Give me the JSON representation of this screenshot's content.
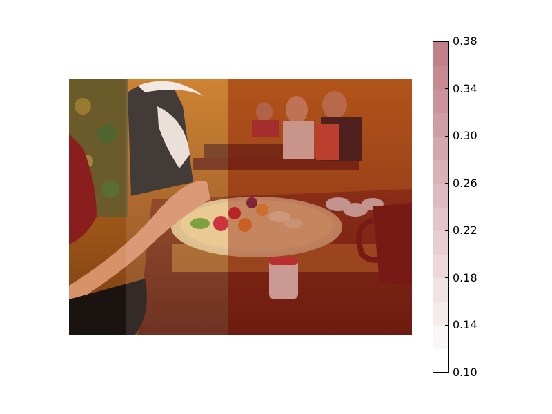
{
  "image": {
    "description_icons": [
      "restaurant-photo"
    ],
    "overlay_colors": [
      "#f6d7d9",
      "#e9aeb4",
      "#8b1a1a"
    ]
  },
  "colorbar": {
    "ticks": [
      "0.38",
      "0.34",
      "0.30",
      "0.26",
      "0.22",
      "0.18",
      "0.14",
      "0.10"
    ],
    "min": 0.1,
    "max": 0.38,
    "colors": {
      "low": "#ffffff",
      "high": "#c1808a"
    }
  }
}
